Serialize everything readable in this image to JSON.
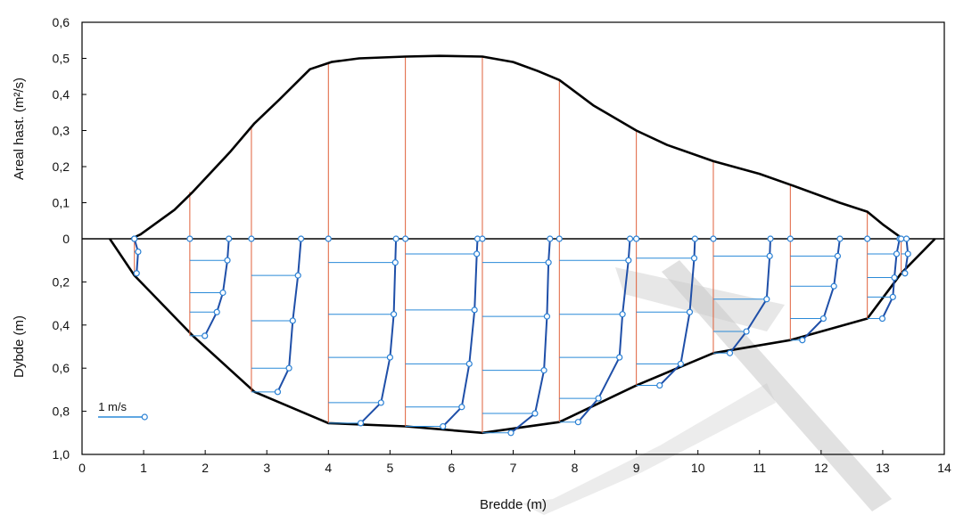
{
  "chart_data": {
    "type": "line",
    "x_axis": {
      "label": "Bredde (m)",
      "range": [
        0,
        14
      ],
      "ticks": [
        "0",
        "1",
        "2",
        "3",
        "4",
        "5",
        "6",
        "7",
        "8",
        "9",
        "10",
        "11",
        "12",
        "13",
        "14"
      ]
    },
    "upper_panel": {
      "ylabel": "Areal hast. (m²/s)",
      "ylim": [
        0,
        0.6
      ],
      "ticks": [
        {
          "v": 0.6,
          "t": "0,6"
        },
        {
          "v": 0.5,
          "t": "0,5"
        },
        {
          "v": 0.4,
          "t": "0,4"
        },
        {
          "v": 0.3,
          "t": "0,3"
        },
        {
          "v": 0.2,
          "t": "0,2"
        },
        {
          "v": 0.1,
          "t": "0,1"
        },
        {
          "v": 0,
          "t": "0"
        }
      ],
      "series": [
        {
          "points": [
            [
              0.8,
              0
            ],
            [
              0.95,
              0.012
            ],
            [
              1.5,
              0.08
            ],
            [
              1.8,
              0.13
            ],
            [
              2.4,
              0.24
            ],
            [
              2.8,
              0.32
            ],
            [
              3.2,
              0.385
            ],
            [
              3.7,
              0.47
            ],
            [
              4.05,
              0.49
            ],
            [
              4.5,
              0.5
            ],
            [
              5.25,
              0.505
            ],
            [
              5.8,
              0.507
            ],
            [
              6.5,
              0.505
            ],
            [
              7.0,
              0.49
            ],
            [
              7.4,
              0.465
            ],
            [
              7.75,
              0.44
            ],
            [
              8.3,
              0.37
            ],
            [
              9.0,
              0.3
            ],
            [
              9.5,
              0.26
            ],
            [
              10.25,
              0.215
            ],
            [
              11.0,
              0.18
            ],
            [
              11.5,
              0.15
            ],
            [
              12.3,
              0.1
            ],
            [
              12.75,
              0.075
            ],
            [
              13.0,
              0.04
            ],
            [
              13.3,
              0.003
            ]
          ]
        }
      ],
      "verticals": [
        {
          "x": 1.75,
          "y": 0.13
        },
        {
          "x": 2.75,
          "y": 0.31
        },
        {
          "x": 4.0,
          "y": 0.49
        },
        {
          "x": 5.25,
          "y": 0.505
        },
        {
          "x": 6.5,
          "y": 0.505
        },
        {
          "x": 7.75,
          "y": 0.44
        },
        {
          "x": 9.0,
          "y": 0.3
        },
        {
          "x": 10.25,
          "y": 0.215
        },
        {
          "x": 11.5,
          "y": 0.15
        },
        {
          "x": 12.75,
          "y": 0.075
        }
      ]
    },
    "lower_panel": {
      "ylabel": "Dybde (m)",
      "ylim": [
        0,
        1.0
      ],
      "ticks": [
        {
          "v": 0,
          "t": "0"
        },
        {
          "v": 0.2,
          "t": "0,2"
        },
        {
          "v": 0.4,
          "t": "0,4"
        },
        {
          "v": 0.6,
          "t": "0,6"
        },
        {
          "v": 0.8,
          "t": "0,8"
        },
        {
          "v": 1.0,
          "t": "1,0"
        }
      ],
      "bed_profile": [
        [
          0.45,
          0
        ],
        [
          0.85,
          0.17
        ],
        [
          1.8,
          0.45
        ],
        [
          2.8,
          0.71
        ],
        [
          4.0,
          0.855
        ],
        [
          5.25,
          0.87
        ],
        [
          6.5,
          0.9
        ],
        [
          7.75,
          0.85
        ],
        [
          9.0,
          0.68
        ],
        [
          10.25,
          0.53
        ],
        [
          11.5,
          0.47
        ],
        [
          12.75,
          0.37
        ],
        [
          13.3,
          0.16
        ],
        [
          13.85,
          0
        ]
      ],
      "legend": {
        "label": "1 m/s",
        "value": 1
      },
      "verticals": [
        {
          "x": 0.85,
          "bottom": 0.17,
          "velocity": [
            [
              0,
              0
            ],
            [
              0.06,
              0.05
            ],
            [
              0.16,
              0.03
            ]
          ]
        },
        {
          "x": 1.75,
          "bottom": 0.45,
          "velocity": [
            [
              0,
              0.52
            ],
            [
              0.1,
              0.5
            ],
            [
              0.25,
              0.44
            ],
            [
              0.34,
              0.36
            ],
            [
              0.45,
              0.2
            ]
          ]
        },
        {
          "x": 2.75,
          "bottom": 0.71,
          "velocity": [
            [
              0,
              0.66
            ],
            [
              0.17,
              0.62
            ],
            [
              0.38,
              0.55
            ],
            [
              0.6,
              0.5
            ],
            [
              0.71,
              0.35
            ]
          ]
        },
        {
          "x": 4.0,
          "bottom": 0.855,
          "velocity": [
            [
              0,
              0.9
            ],
            [
              0.11,
              0.89
            ],
            [
              0.35,
              0.87
            ],
            [
              0.55,
              0.82
            ],
            [
              0.76,
              0.7
            ],
            [
              0.855,
              0.43
            ]
          ]
        },
        {
          "x": 5.25,
          "bottom": 0.87,
          "velocity": [
            [
              0,
              0.96
            ],
            [
              0.07,
              0.95
            ],
            [
              0.33,
              0.92
            ],
            [
              0.58,
              0.85
            ],
            [
              0.78,
              0.75
            ],
            [
              0.87,
              0.5
            ]
          ]
        },
        {
          "x": 6.5,
          "bottom": 0.9,
          "velocity": [
            [
              0,
              0.9
            ],
            [
              0.11,
              0.88
            ],
            [
              0.36,
              0.86
            ],
            [
              0.61,
              0.82
            ],
            [
              0.81,
              0.7
            ],
            [
              0.9,
              0.38
            ]
          ]
        },
        {
          "x": 7.75,
          "bottom": 0.85,
          "velocity": [
            [
              0,
              0.94
            ],
            [
              0.1,
              0.92
            ],
            [
              0.35,
              0.84
            ],
            [
              0.55,
              0.8
            ],
            [
              0.74,
              0.52
            ],
            [
              0.85,
              0.25
            ]
          ]
        },
        {
          "x": 9.0,
          "bottom": 0.68,
          "velocity": [
            [
              0,
              0.78
            ],
            [
              0.09,
              0.77
            ],
            [
              0.34,
              0.71
            ],
            [
              0.58,
              0.59
            ],
            [
              0.68,
              0.31
            ]
          ]
        },
        {
          "x": 10.25,
          "bottom": 0.53,
          "velocity": [
            [
              0,
              0.76
            ],
            [
              0.08,
              0.75
            ],
            [
              0.28,
              0.71
            ],
            [
              0.43,
              0.44
            ],
            [
              0.53,
              0.22
            ]
          ]
        },
        {
          "x": 11.5,
          "bottom": 0.47,
          "velocity": [
            [
              0,
              0.66
            ],
            [
              0.08,
              0.63
            ],
            [
              0.22,
              0.58
            ],
            [
              0.37,
              0.44
            ],
            [
              0.47,
              0.16
            ]
          ]
        },
        {
          "x": 12.75,
          "bottom": 0.37,
          "velocity": [
            [
              0,
              0.43
            ],
            [
              0.07,
              0.39
            ],
            [
              0.18,
              0.36
            ],
            [
              0.27,
              0.34
            ],
            [
              0.37,
              0.2
            ]
          ]
        },
        {
          "x": 13.3,
          "bottom": 0.16,
          "velocity": [
            [
              0,
              0.07
            ],
            [
              0.07,
              0.09
            ],
            [
              0.16,
              0.05
            ]
          ]
        }
      ]
    },
    "colors": {
      "frame": "#000000",
      "profile": "#000000",
      "vertical_lines": "#e0603a",
      "velocity_curve": "#1f4fa8",
      "velocity_lines": "#2a8ad8",
      "markers": "#2a80d4",
      "watermark": "#c9c9c9"
    }
  }
}
